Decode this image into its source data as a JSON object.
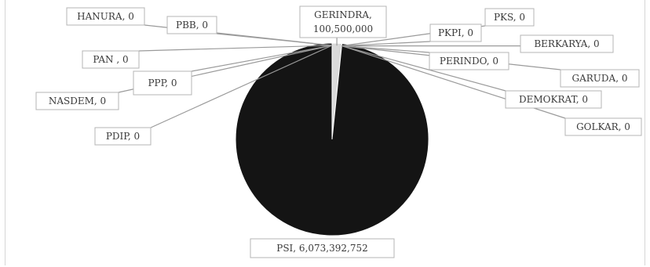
{
  "chart_data": {
    "type": "pie",
    "title": "",
    "slices": [
      {
        "label": "GERINDRA",
        "value": 100500000
      },
      {
        "label": "PKS",
        "value": 0
      },
      {
        "label": "PKPI",
        "value": 0
      },
      {
        "label": "BERKARYA",
        "value": 0
      },
      {
        "label": "PERINDO",
        "value": 0
      },
      {
        "label": "GARUDA",
        "value": 0
      },
      {
        "label": "DEMOKRAT",
        "value": 0
      },
      {
        "label": "GOLKAR",
        "value": 0
      },
      {
        "label": "PSI",
        "value": 6073392752
      },
      {
        "label": "PDIP",
        "value": 0
      },
      {
        "label": "NASDEM",
        "value": 0
      },
      {
        "label": "PPP",
        "value": 0
      },
      {
        "label": "PAN",
        "value": 0
      },
      {
        "label": "PBB",
        "value": 0
      },
      {
        "label": "HANURA",
        "value": 0
      }
    ],
    "data_labels": [
      {
        "party": "HANURA",
        "text": "HANURA, 0"
      },
      {
        "party": "PBB",
        "text": "PBB, 0"
      },
      {
        "party": "GERINDRA",
        "text": "GERINDRA,",
        "text2": "100,500,000"
      },
      {
        "party": "PKS",
        "text": "PKS, 0"
      },
      {
        "party": "PKPI",
        "text": "PKPI, 0"
      },
      {
        "party": "BERKARYA",
        "text": "BERKARYA, 0"
      },
      {
        "party": "PAN",
        "text": "PAN , 0"
      },
      {
        "party": "PERINDO",
        "text": "PERINDO, 0"
      },
      {
        "party": "GARUDA",
        "text": "GARUDA, 0"
      },
      {
        "party": "PPP",
        "text": "PPP, 0"
      },
      {
        "party": "DEMOKRAT",
        "text": "DEMOKRAT, 0"
      },
      {
        "party": "NASDEM",
        "text": "NASDEM, 0"
      },
      {
        "party": "PDIP",
        "text": "PDIP, 0"
      },
      {
        "party": "GOLKAR",
        "text": "GOLKAR, 0"
      },
      {
        "party": "PSI",
        "text": "PSI,  6,073,392,752"
      }
    ],
    "colors": {
      "PSI": "#141414",
      "GERINDRA": "#d9d9d9",
      "slice_border": "#ffffff"
    },
    "legend": "none"
  }
}
